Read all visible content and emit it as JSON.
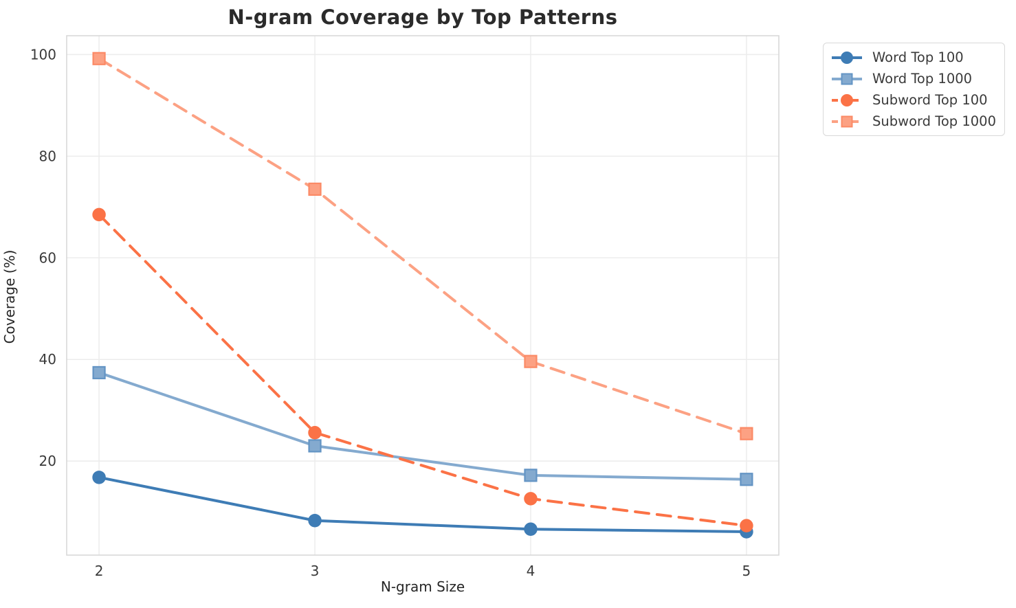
{
  "chart_data": {
    "type": "line",
    "title": "N-gram Coverage by Top Patterns",
    "xlabel": "N-gram Size",
    "ylabel": "Coverage (%)",
    "x": [
      2,
      3,
      4,
      5
    ],
    "xticks": [
      "2",
      "3",
      "4",
      "5"
    ],
    "yticks": [
      20,
      40,
      60,
      80,
      100
    ],
    "xlim": [
      1.85,
      5.15
    ],
    "ylim": [
      1.5,
      103.7
    ],
    "grid": true,
    "legend_position": "outside upper right",
    "series": [
      {
        "name": "Word Top 100",
        "values": [
          16.8,
          8.3,
          6.6,
          6.1
        ],
        "color": "#3e7cb5",
        "marker_fill": "#3e7cb5",
        "marker_edge": "#3e7cb5",
        "line_style": "solid",
        "marker": "circle"
      },
      {
        "name": "Word Top 1000",
        "values": [
          37.4,
          23.0,
          17.2,
          16.4
        ],
        "color": "#84aacf",
        "marker_fill": "#84aacf",
        "marker_edge": "#6394c4",
        "line_style": "solid",
        "marker": "square"
      },
      {
        "name": "Subword Top 100",
        "values": [
          68.5,
          25.6,
          12.6,
          7.3
        ],
        "color": "#fb7246",
        "marker_fill": "#fb7246",
        "marker_edge": "#fb7246",
        "line_style": "dashed",
        "marker": "circle"
      },
      {
        "name": "Subword Top 1000",
        "values": [
          99.2,
          73.5,
          39.6,
          25.4
        ],
        "color": "#fca183",
        "marker_fill": "#fca183",
        "marker_edge": "#fb8a66",
        "line_style": "dashed",
        "marker": "square"
      }
    ],
    "style": {
      "background": "#ffffff",
      "grid_color": "#ececec",
      "spine_color": "#d9d9d9",
      "tick_label_color": "#3a3a3a",
      "title_color": "#2b2b2b",
      "legend_border_color": "#d8d8d8"
    }
  }
}
